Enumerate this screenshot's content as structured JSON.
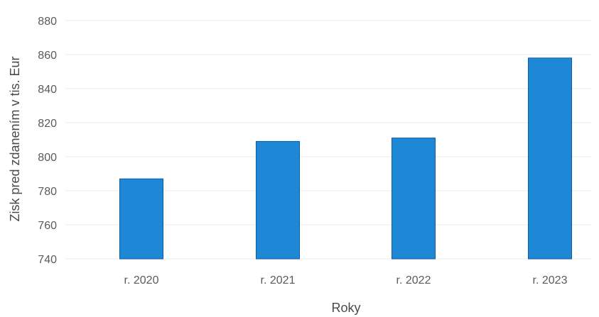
{
  "chart_data": {
    "type": "bar",
    "title": "",
    "xlabel": "Roky",
    "ylabel": "Zisk pred zdanením v tis. Eur",
    "categories": [
      "r. 2020",
      "r. 2021",
      "r. 2022",
      "r. 2023"
    ],
    "values": [
      787,
      809,
      811,
      858
    ],
    "ylim": [
      740,
      880
    ],
    "yticks": [
      880,
      860,
      840,
      820,
      800,
      780,
      760,
      740
    ],
    "grid": true,
    "legend": "none",
    "colors": {
      "bar": "#1f88d6",
      "bar_edge": "#0b5aa6",
      "grid": "#ececec"
    }
  }
}
